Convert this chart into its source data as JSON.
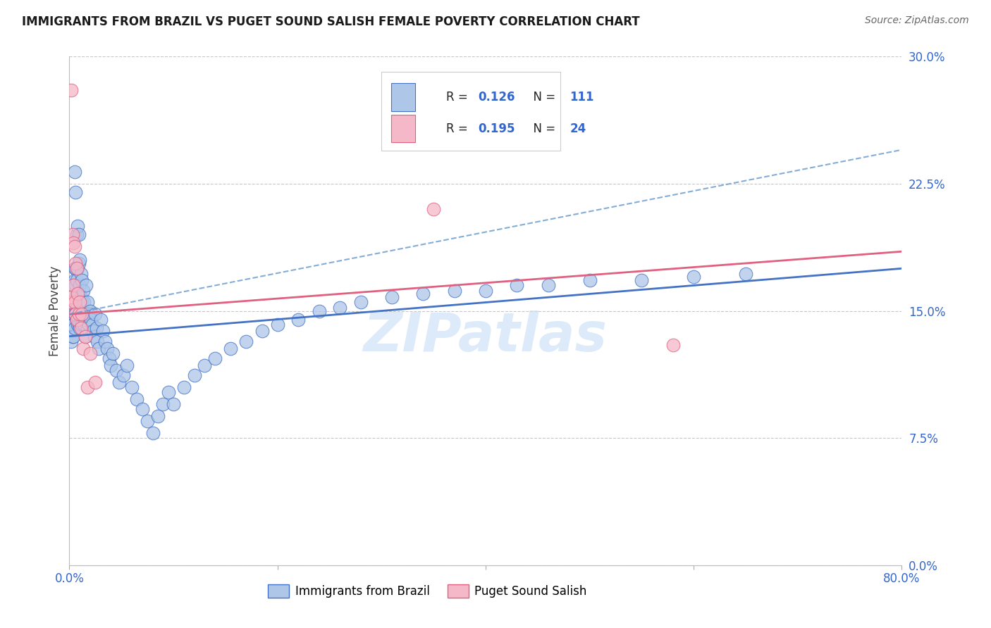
{
  "title": "IMMIGRANTS FROM BRAZIL VS PUGET SOUND SALISH FEMALE POVERTY CORRELATION CHART",
  "source": "Source: ZipAtlas.com",
  "ylabel": "Female Poverty",
  "xlim": [
    0.0,
    0.8
  ],
  "ylim": [
    0.0,
    0.3
  ],
  "xticks": [
    0.0,
    0.2,
    0.4,
    0.6,
    0.8
  ],
  "xtick_labels": [
    "0.0%",
    "",
    "",
    "",
    "80.0%"
  ],
  "ytick_labels": [
    "0.0%",
    "7.5%",
    "15.0%",
    "22.5%",
    "30.0%"
  ],
  "yticks": [
    0.0,
    0.075,
    0.15,
    0.225,
    0.3
  ],
  "background_color": "#ffffff",
  "grid_color": "#c8c8c8",
  "blue_color": "#aec6e8",
  "blue_edge_color": "#4472c4",
  "pink_color": "#f4b8c8",
  "pink_edge_color": "#e06080",
  "blue_trend_color": "#4472c4",
  "pink_trend_color": "#e06080",
  "blue_dashed_color": "#6699cc",
  "watermark_color": "#c5ddf5",
  "brazil_x": [
    0.001,
    0.001,
    0.002,
    0.002,
    0.002,
    0.002,
    0.003,
    0.003,
    0.003,
    0.003,
    0.003,
    0.003,
    0.004,
    0.004,
    0.004,
    0.004,
    0.004,
    0.005,
    0.005,
    0.005,
    0.005,
    0.005,
    0.006,
    0.006,
    0.006,
    0.006,
    0.007,
    0.007,
    0.007,
    0.007,
    0.008,
    0.008,
    0.008,
    0.008,
    0.009,
    0.009,
    0.009,
    0.009,
    0.01,
    0.01,
    0.01,
    0.01,
    0.011,
    0.011,
    0.011,
    0.012,
    0.012,
    0.012,
    0.013,
    0.013,
    0.014,
    0.014,
    0.015,
    0.015,
    0.016,
    0.016,
    0.017,
    0.017,
    0.018,
    0.019,
    0.02,
    0.021,
    0.022,
    0.023,
    0.024,
    0.025,
    0.026,
    0.027,
    0.028,
    0.03,
    0.032,
    0.034,
    0.036,
    0.038,
    0.04,
    0.042,
    0.045,
    0.048,
    0.052,
    0.055,
    0.06,
    0.065,
    0.07,
    0.075,
    0.08,
    0.085,
    0.09,
    0.095,
    0.1,
    0.11,
    0.12,
    0.13,
    0.14,
    0.155,
    0.17,
    0.185,
    0.2,
    0.22,
    0.24,
    0.26,
    0.28,
    0.31,
    0.34,
    0.37,
    0.4,
    0.43,
    0.46,
    0.5,
    0.55,
    0.6,
    0.65
  ],
  "brazil_y": [
    0.148,
    0.14,
    0.15,
    0.145,
    0.138,
    0.132,
    0.165,
    0.158,
    0.145,
    0.14,
    0.148,
    0.135,
    0.162,
    0.155,
    0.148,
    0.142,
    0.135,
    0.232,
    0.175,
    0.168,
    0.148,
    0.14,
    0.22,
    0.175,
    0.165,
    0.148,
    0.195,
    0.168,
    0.155,
    0.145,
    0.2,
    0.175,
    0.16,
    0.142,
    0.195,
    0.178,
    0.16,
    0.142,
    0.18,
    0.165,
    0.152,
    0.14,
    0.172,
    0.158,
    0.145,
    0.168,
    0.155,
    0.142,
    0.162,
    0.148,
    0.155,
    0.142,
    0.148,
    0.135,
    0.165,
    0.148,
    0.155,
    0.14,
    0.148,
    0.142,
    0.15,
    0.145,
    0.142,
    0.138,
    0.135,
    0.148,
    0.14,
    0.132,
    0.128,
    0.145,
    0.138,
    0.132,
    0.128,
    0.122,
    0.118,
    0.125,
    0.115,
    0.108,
    0.112,
    0.118,
    0.105,
    0.098,
    0.092,
    0.085,
    0.078,
    0.088,
    0.095,
    0.102,
    0.095,
    0.105,
    0.112,
    0.118,
    0.122,
    0.128,
    0.132,
    0.138,
    0.142,
    0.145,
    0.15,
    0.152,
    0.155,
    0.158,
    0.16,
    0.162,
    0.162,
    0.165,
    0.165,
    0.168,
    0.168,
    0.17,
    0.172
  ],
  "salish_x": [
    0.001,
    0.002,
    0.002,
    0.003,
    0.004,
    0.004,
    0.005,
    0.005,
    0.006,
    0.006,
    0.007,
    0.007,
    0.008,
    0.009,
    0.01,
    0.011,
    0.012,
    0.013,
    0.015,
    0.017,
    0.02,
    0.025,
    0.35,
    0.58
  ],
  "salish_y": [
    0.155,
    0.28,
    0.158,
    0.195,
    0.19,
    0.165,
    0.188,
    0.155,
    0.178,
    0.148,
    0.175,
    0.145,
    0.16,
    0.148,
    0.155,
    0.14,
    0.148,
    0.128,
    0.135,
    0.105,
    0.125,
    0.108,
    0.21,
    0.13
  ],
  "brazil_trend": [
    0.135,
    0.175
  ],
  "salish_trend": [
    0.148,
    0.185
  ],
  "dashed_trend": [
    0.148,
    0.245
  ],
  "legend_R1": "0.126",
  "legend_N1": "111",
  "legend_R2": "0.195",
  "legend_N2": "24"
}
